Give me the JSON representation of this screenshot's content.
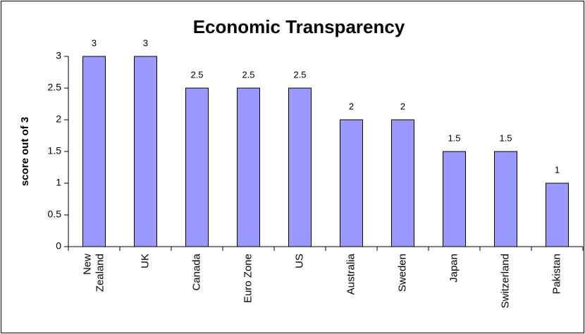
{
  "chart_data": {
    "type": "bar",
    "title": "Economic Transparency",
    "y_label": "score out of 3",
    "categories": [
      "New Zealand",
      "UK",
      "Canada",
      "Euro Zone",
      "US",
      "Australia",
      "Sweden",
      "Japan",
      "Switzerland",
      "Pakistan"
    ],
    "values": [
      3,
      3,
      2.5,
      2.5,
      2.5,
      2,
      2,
      1.5,
      1.5,
      1
    ],
    "color": "#9999ff",
    "ylim": [
      0,
      3
    ],
    "yticks": [
      0,
      0.5,
      1,
      1.5,
      2,
      2.5,
      3
    ],
    "grid": false
  }
}
